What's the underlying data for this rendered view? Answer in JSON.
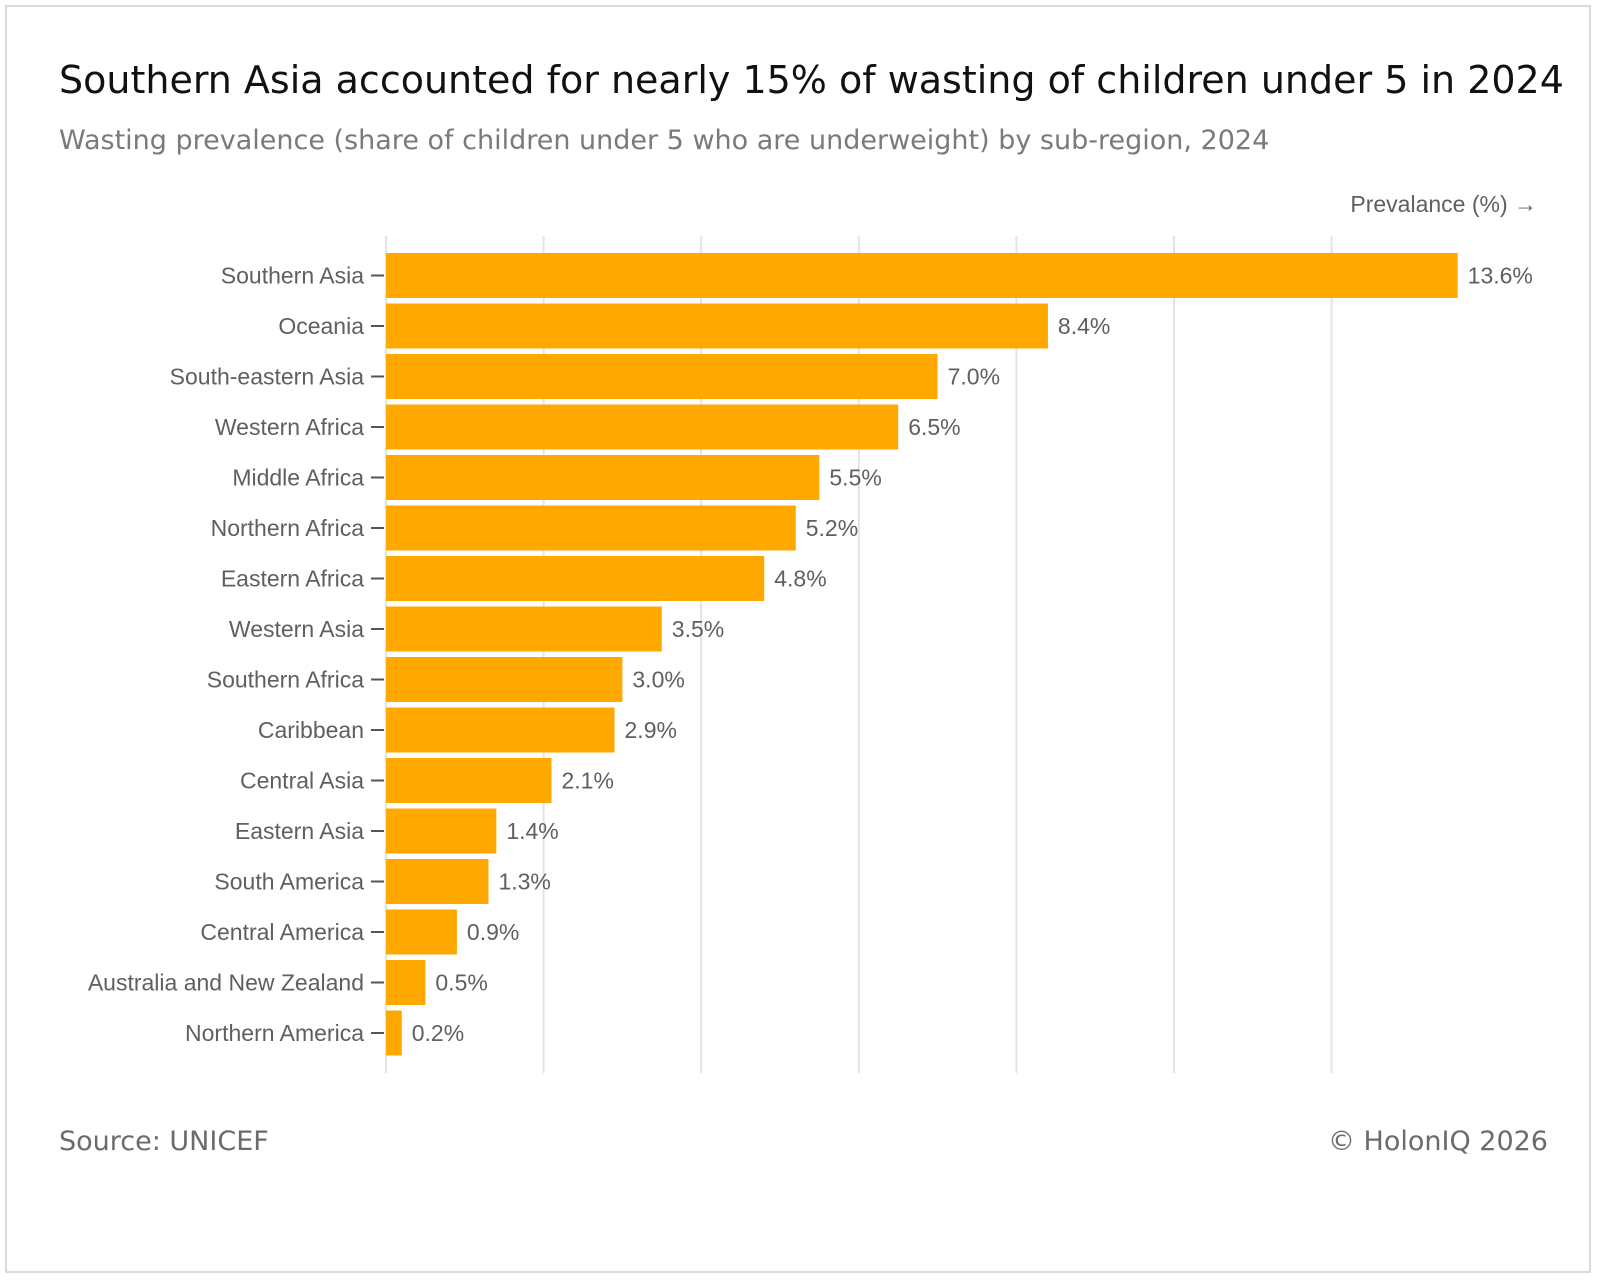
{
  "header": {
    "title": "Southern Asia accounted for nearly 15% of wasting of children under 5 in 2024",
    "subtitle": "Wasting prevalence (share of children under 5 who are underweight) by sub-region, 2024"
  },
  "footer": {
    "source": "Source: UNICEF",
    "copyright": "© HolonIQ 2026"
  },
  "colors": {
    "bar": "#FFA800",
    "grid": "#e3e3e3",
    "label": "#5f5f5f"
  },
  "chart_data": {
    "type": "bar",
    "orientation": "horizontal",
    "xlabel": "Prevalance (%) →",
    "xlim": [
      0,
      14
    ],
    "grid": true,
    "categories": [
      "Southern Asia",
      "Oceania",
      "South-eastern Asia",
      "Western Africa",
      "Middle Africa",
      "Northern Africa",
      "Eastern Africa",
      "Western Asia",
      "Southern Africa",
      "Caribbean",
      "Central Asia",
      "Eastern Asia",
      "South America",
      "Central America",
      "Australia and New Zealand",
      "Northern America"
    ],
    "values": [
      13.6,
      8.4,
      7.0,
      6.5,
      5.5,
      5.2,
      4.8,
      3.5,
      3.0,
      2.9,
      2.1,
      1.4,
      1.3,
      0.9,
      0.5,
      0.2
    ],
    "data_labels": [
      "13.6%",
      "8.4%",
      "7.0%",
      "6.5%",
      "5.5%",
      "5.2%",
      "4.8%",
      "3.5%",
      "3.0%",
      "2.9%",
      "2.1%",
      "1.4%",
      "1.3%",
      "0.9%",
      "0.5%",
      "0.2%"
    ]
  }
}
